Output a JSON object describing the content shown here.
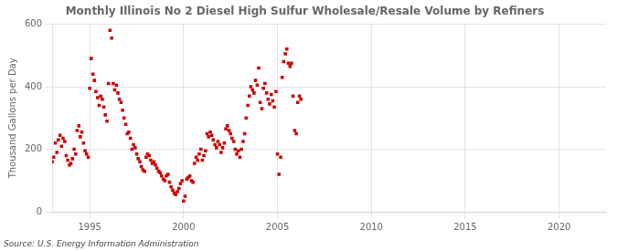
{
  "chart_data": {
    "type": "scatter",
    "title": "Monthly Illinois No 2 Diesel High Sulfur Wholesale/Resale Volume by Refiners",
    "y_label": "Thousand Gallons per Day",
    "annotations": [
      "Source: U.S. Energy Information Administration"
    ],
    "x": [
      1993.0,
      1993.08,
      1993.17,
      1993.25,
      1993.33,
      1993.42,
      1993.5,
      1993.58,
      1993.67,
      1993.75,
      1993.83,
      1993.92,
      1994.0,
      1994.08,
      1994.17,
      1994.25,
      1994.33,
      1994.42,
      1994.5,
      1994.58,
      1994.67,
      1994.75,
      1994.83,
      1994.92,
      1995.0,
      1995.08,
      1995.17,
      1995.25,
      1995.33,
      1995.42,
      1995.5,
      1995.58,
      1995.67,
      1995.75,
      1995.83,
      1995.92,
      1996.0,
      1996.08,
      1996.17,
      1996.25,
      1996.33,
      1996.42,
      1996.5,
      1996.58,
      1996.67,
      1996.75,
      1996.83,
      1996.92,
      1997.0,
      1997.08,
      1997.17,
      1997.25,
      1997.33,
      1997.42,
      1997.5,
      1997.58,
      1997.67,
      1997.75,
      1997.83,
      1997.92,
      1998.0,
      1998.08,
      1998.17,
      1998.25,
      1998.33,
      1998.42,
      1998.5,
      1998.58,
      1998.67,
      1998.75,
      1998.83,
      1998.92,
      1999.0,
      1999.08,
      1999.17,
      1999.25,
      1999.33,
      1999.42,
      1999.5,
      1999.58,
      1999.67,
      1999.75,
      1999.83,
      1999.92,
      2000.0,
      2000.08,
      2000.17,
      2000.25,
      2000.33,
      2000.42,
      2000.5,
      2000.58,
      2000.67,
      2000.75,
      2000.83,
      2000.92,
      2001.0,
      2001.08,
      2001.17,
      2001.25,
      2001.33,
      2001.42,
      2001.5,
      2001.58,
      2001.67,
      2001.75,
      2001.83,
      2001.92,
      2002.0,
      2002.08,
      2002.17,
      2002.25,
      2002.33,
      2002.42,
      2002.5,
      2002.58,
      2002.67,
      2002.75,
      2002.83,
      2002.92,
      2003.0,
      2003.08,
      2003.17,
      2003.25,
      2003.33,
      2003.42,
      2003.5,
      2003.58,
      2003.67,
      2003.75,
      2003.83,
      2003.92,
      2004.0,
      2004.08,
      2004.17,
      2004.25,
      2004.33,
      2004.42,
      2004.5,
      2004.58,
      2004.67,
      2004.75,
      2004.83,
      2004.92,
      2005.0,
      2005.08,
      2005.17,
      2005.25,
      2005.33,
      2005.42,
      2005.5,
      2005.58,
      2005.67,
      2005.75,
      2005.83,
      2005.92,
      2006.0,
      2006.08,
      2006.17,
      2006.25
    ],
    "values": [
      160,
      175,
      220,
      190,
      230,
      245,
      210,
      235,
      225,
      180,
      165,
      150,
      155,
      170,
      200,
      185,
      260,
      275,
      240,
      255,
      220,
      195,
      185,
      175,
      395,
      490,
      440,
      420,
      385,
      365,
      340,
      370,
      360,
      335,
      310,
      290,
      410,
      580,
      555,
      410,
      390,
      405,
      380,
      360,
      350,
      325,
      300,
      280,
      250,
      255,
      235,
      200,
      215,
      205,
      185,
      170,
      160,
      145,
      135,
      130,
      175,
      185,
      180,
      165,
      155,
      160,
      150,
      140,
      130,
      125,
      115,
      105,
      100,
      115,
      120,
      95,
      80,
      70,
      60,
      55,
      65,
      75,
      90,
      100,
      35,
      50,
      105,
      110,
      115,
      100,
      95,
      155,
      175,
      165,
      185,
      200,
      165,
      180,
      195,
      250,
      240,
      255,
      245,
      230,
      215,
      205,
      225,
      215,
      190,
      205,
      220,
      265,
      275,
      260,
      250,
      235,
      225,
      200,
      185,
      195,
      175,
      200,
      225,
      250,
      300,
      340,
      370,
      400,
      390,
      380,
      420,
      405,
      460,
      350,
      330,
      395,
      410,
      380,
      360,
      345,
      375,
      355,
      335,
      385,
      185,
      120,
      175,
      430,
      480,
      505,
      520,
      475,
      465,
      475,
      370,
      260,
      250,
      350,
      370,
      360
    ],
    "color": "#cc0000",
    "marker": "square",
    "xlim": [
      1993.0,
      2022.5
    ],
    "ylim": [
      0,
      600
    ],
    "xticks": [
      1995,
      2000,
      2005,
      2010,
      2015,
      2020
    ],
    "yticks": [
      0,
      200,
      400,
      600
    ],
    "grid": true
  }
}
